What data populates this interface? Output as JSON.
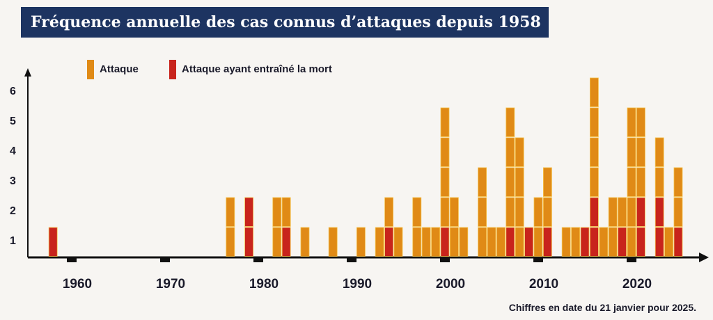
{
  "chart_data": {
    "type": "bar",
    "stacked": true,
    "title": "Fréquence annuelle des cas connus d’attaques depuis 1958",
    "legend": [
      {
        "name": "Attaque",
        "color": "#e08a16"
      },
      {
        "name": "Attaque ayant entraîné la mort",
        "color": "#c8241c"
      }
    ],
    "legend_placement": "top-left",
    "x_ticks": [
      "1960",
      "1970",
      "1980",
      "1990",
      "2000",
      "2010",
      "2020"
    ],
    "y_ticks": [
      1,
      2,
      3,
      4,
      5,
      6
    ],
    "ylim": [
      0,
      6
    ],
    "note": "Chiffres en date du 21 janvier pour 2025.",
    "years": [
      1958,
      1977,
      1979,
      1982,
      1983,
      1985,
      1988,
      1991,
      1993,
      1994,
      1995,
      1997,
      1998,
      1999,
      2000,
      2001,
      2002,
      2004,
      2005,
      2006,
      2007,
      2008,
      2009,
      2010,
      2011,
      2013,
      2014,
      2015,
      2016,
      2017,
      2018,
      2019,
      2020,
      2021,
      2023,
      2024,
      2025
    ],
    "series": [
      {
        "name": "Attaque ayant entraîné la mort",
        "values": [
          1,
          0,
          2,
          0,
          1,
          0,
          0,
          0,
          0,
          1,
          0,
          0,
          0,
          0,
          1,
          0,
          0,
          0,
          0,
          0,
          1,
          0,
          1,
          0,
          1,
          0,
          0,
          1,
          2,
          0,
          0,
          1,
          0,
          2,
          2,
          0,
          1
        ]
      },
      {
        "name": "Attaque",
        "values": [
          0,
          2,
          0,
          2,
          1,
          1,
          1,
          1,
          1,
          1,
          1,
          2,
          1,
          1,
          4,
          2,
          1,
          3,
          1,
          1,
          4,
          4,
          0,
          2,
          2,
          1,
          1,
          0,
          4,
          1,
          2,
          1,
          5,
          3,
          2,
          1,
          2
        ]
      }
    ]
  }
}
